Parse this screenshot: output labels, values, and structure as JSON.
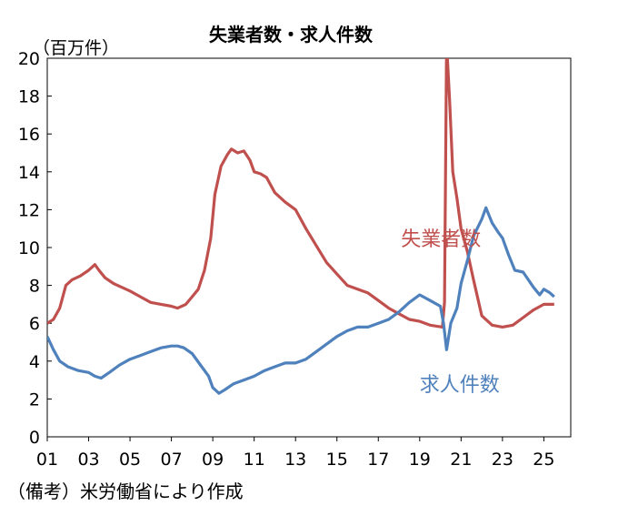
{
  "chart_data": {
    "type": "line",
    "title": "失業者数・求人件数",
    "unit_label": "（百万件）",
    "note": "（備考）米労働省により作成",
    "ylim": [
      0,
      20
    ],
    "yticks": [
      0,
      2,
      4,
      6,
      8,
      10,
      12,
      14,
      16,
      18,
      20
    ],
    "xlim": [
      2001,
      2026.3
    ],
    "xticks": [
      {
        "value": 2001,
        "label": "01"
      },
      {
        "value": 2003,
        "label": "03"
      },
      {
        "value": 2005,
        "label": "05"
      },
      {
        "value": 2007,
        "label": "07"
      },
      {
        "value": 2009,
        "label": "09"
      },
      {
        "value": 2011,
        "label": "11"
      },
      {
        "value": 2013,
        "label": "13"
      },
      {
        "value": 2015,
        "label": "15"
      },
      {
        "value": 2017,
        "label": "17"
      },
      {
        "value": 2019,
        "label": "19"
      },
      {
        "value": 2021,
        "label": "21"
      },
      {
        "value": 2023,
        "label": "23"
      },
      {
        "value": 2025,
        "label": "25"
      }
    ],
    "grid": false,
    "series": [
      {
        "name": "失業者数",
        "color": "#c0504d",
        "label_at": {
          "x": 2018.1,
          "y": 10.1
        },
        "x": [
          2001.0,
          2001.3,
          2001.6,
          2001.9,
          2002.2,
          2002.6,
          2003.0,
          2003.3,
          2003.5,
          2003.8,
          2004.2,
          2004.6,
          2005.0,
          2005.5,
          2006.0,
          2006.5,
          2007.0,
          2007.3,
          2007.7,
          2008.0,
          2008.3,
          2008.6,
          2008.9,
          2009.1,
          2009.4,
          2009.7,
          2009.9,
          2010.2,
          2010.5,
          2010.8,
          2011.0,
          2011.3,
          2011.6,
          2012.0,
          2012.5,
          2013.0,
          2013.5,
          2014.0,
          2014.5,
          2015.0,
          2015.5,
          2016.0,
          2016.5,
          2017.0,
          2017.5,
          2018.0,
          2018.5,
          2019.0,
          2019.5,
          2020.1,
          2020.2,
          2020.3,
          2020.45,
          2020.6,
          2020.8,
          2021.0,
          2021.3,
          2021.6,
          2022.0,
          2022.5,
          2023.0,
          2023.5,
          2024.0,
          2024.5,
          2025.0,
          2025.5
        ],
        "y": [
          6.0,
          6.2,
          6.8,
          8.0,
          8.3,
          8.5,
          8.8,
          9.1,
          8.8,
          8.4,
          8.1,
          7.9,
          7.7,
          7.4,
          7.1,
          7.0,
          6.9,
          6.8,
          7.0,
          7.4,
          7.8,
          8.8,
          10.5,
          12.8,
          14.3,
          14.9,
          15.2,
          15.0,
          15.1,
          14.6,
          14.0,
          13.9,
          13.7,
          12.9,
          12.4,
          12.0,
          11.0,
          10.1,
          9.2,
          8.6,
          8.0,
          7.8,
          7.6,
          7.2,
          6.8,
          6.5,
          6.2,
          6.1,
          5.9,
          5.8,
          7.1,
          20.8,
          17.7,
          14.0,
          12.6,
          11.0,
          9.8,
          8.3,
          6.4,
          5.9,
          5.8,
          5.9,
          6.3,
          6.7,
          7.0,
          7.0
        ]
      },
      {
        "name": "求人件数",
        "color": "#4f81bd",
        "label_at": {
          "x": 2019.0,
          "y": 2.4
        },
        "x": [
          2001.0,
          2001.3,
          2001.6,
          2002.0,
          2002.5,
          2003.0,
          2003.3,
          2003.6,
          2004.0,
          2004.5,
          2005.0,
          2005.5,
          2006.0,
          2006.5,
          2007.0,
          2007.3,
          2007.6,
          2008.0,
          2008.4,
          2008.8,
          2009.0,
          2009.3,
          2009.6,
          2010.0,
          2010.5,
          2011.0,
          2011.5,
          2012.0,
          2012.5,
          2013.0,
          2013.5,
          2014.0,
          2014.5,
          2015.0,
          2015.5,
          2016.0,
          2016.5,
          2017.0,
          2017.5,
          2018.0,
          2018.5,
          2019.0,
          2019.5,
          2020.0,
          2020.15,
          2020.3,
          2020.5,
          2020.8,
          2021.0,
          2021.3,
          2021.6,
          2022.0,
          2022.2,
          2022.5,
          2022.8,
          2023.0,
          2023.3,
          2023.6,
          2024.0,
          2024.5,
          2024.8,
          2025.0,
          2025.3,
          2025.5
        ],
        "y": [
          5.3,
          4.6,
          4.0,
          3.7,
          3.5,
          3.4,
          3.2,
          3.1,
          3.4,
          3.8,
          4.1,
          4.3,
          4.5,
          4.7,
          4.8,
          4.8,
          4.7,
          4.4,
          3.8,
          3.2,
          2.6,
          2.3,
          2.5,
          2.8,
          3.0,
          3.2,
          3.5,
          3.7,
          3.9,
          3.9,
          4.1,
          4.5,
          4.9,
          5.3,
          5.6,
          5.8,
          5.8,
          6.0,
          6.2,
          6.6,
          7.1,
          7.5,
          7.2,
          6.9,
          6.0,
          4.6,
          6.0,
          6.8,
          8.1,
          9.3,
          10.6,
          11.5,
          12.1,
          11.3,
          10.8,
          10.5,
          9.6,
          8.8,
          8.7,
          7.9,
          7.5,
          7.8,
          7.6,
          7.4
        ]
      }
    ]
  }
}
